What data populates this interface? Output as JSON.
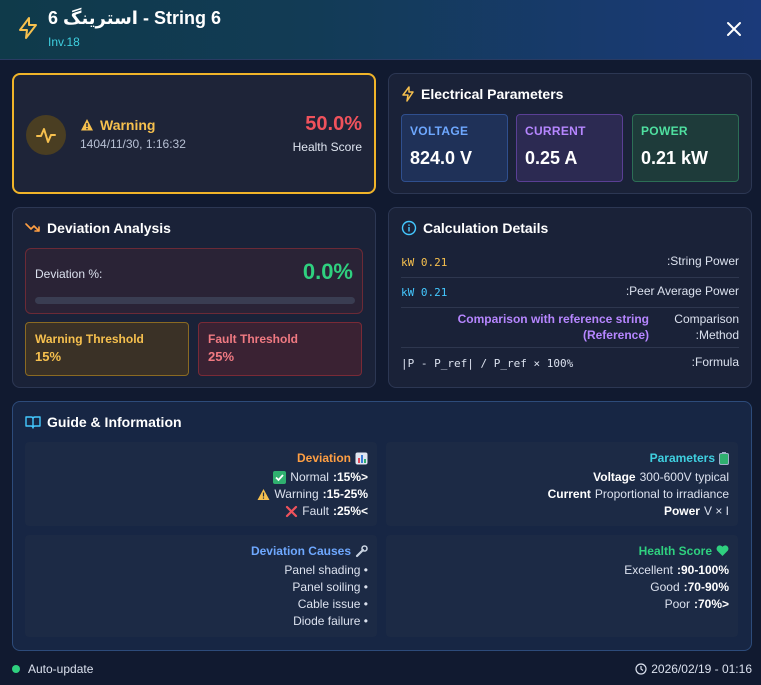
{
  "header": {
    "title": "استرینگ 6 - String 6",
    "subtitle": "Inv.18",
    "accent": "#f6c04e"
  },
  "status": {
    "label": "Warning",
    "timestamp": "1404/11/30, 1:16:32",
    "health_value": "50.0%",
    "health_label": "Health Score"
  },
  "electrical": {
    "title": "Electrical Parameters",
    "metrics": [
      {
        "label": "VOLTAGE",
        "value": "824.0 V"
      },
      {
        "label": "CURRENT",
        "value": "0.25 A"
      },
      {
        "label": "POWER",
        "value": "0.21 kW"
      }
    ]
  },
  "deviation": {
    "title": "Deviation Analysis",
    "label": "Deviation %:",
    "value": "0.0%",
    "progress_fraction": 0.0,
    "warning_name": "Warning Threshold",
    "warning_value": "15%",
    "fault_name": "Fault Threshold",
    "fault_value": "25%"
  },
  "calculation": {
    "title": "Calculation Details",
    "rows": [
      {
        "value": "kW 0.21",
        "label": ":String Power"
      },
      {
        "value": "kW 0.21",
        "label": ":Peer Average Power"
      },
      {
        "value_line1": "Comparison with reference string",
        "value_line2": "(Reference)",
        "label_line1": "Comparison",
        "label_line2": ":Method"
      },
      {
        "value": "|P - P_ref| / P_ref × 100%",
        "label": ":Formula"
      }
    ]
  },
  "guide": {
    "title": "Guide & Information",
    "deviation": {
      "heading": "Deviation",
      "lines": [
        {
          "name": "Normal",
          "value": ":15%>"
        },
        {
          "name": "Warning",
          "value": ":15-25%"
        },
        {
          "name": "Fault",
          "value": ":25%<"
        }
      ]
    },
    "parameters": {
      "heading": "Parameters",
      "lines": [
        {
          "name": "Voltage",
          "text": "300-600V typical"
        },
        {
          "name": "Current",
          "text": "Proportional to irradiance"
        },
        {
          "name": "Power",
          "text": "V × I"
        }
      ]
    },
    "causes": {
      "heading": "Deviation Causes",
      "lines": [
        "Panel shading •",
        "Panel soiling •",
        "Cable issue •",
        "Diode failure •"
      ]
    },
    "health": {
      "heading": "Health Score",
      "lines": [
        {
          "name": "Excellent",
          "value": ":90-100%"
        },
        {
          "name": "Good",
          "value": ":70-90%"
        },
        {
          "name": "Poor",
          "value": ":70%>"
        }
      ]
    }
  },
  "footer": {
    "auto_update": "Auto-update",
    "timestamp": "2026/02/19 - 01:16"
  }
}
